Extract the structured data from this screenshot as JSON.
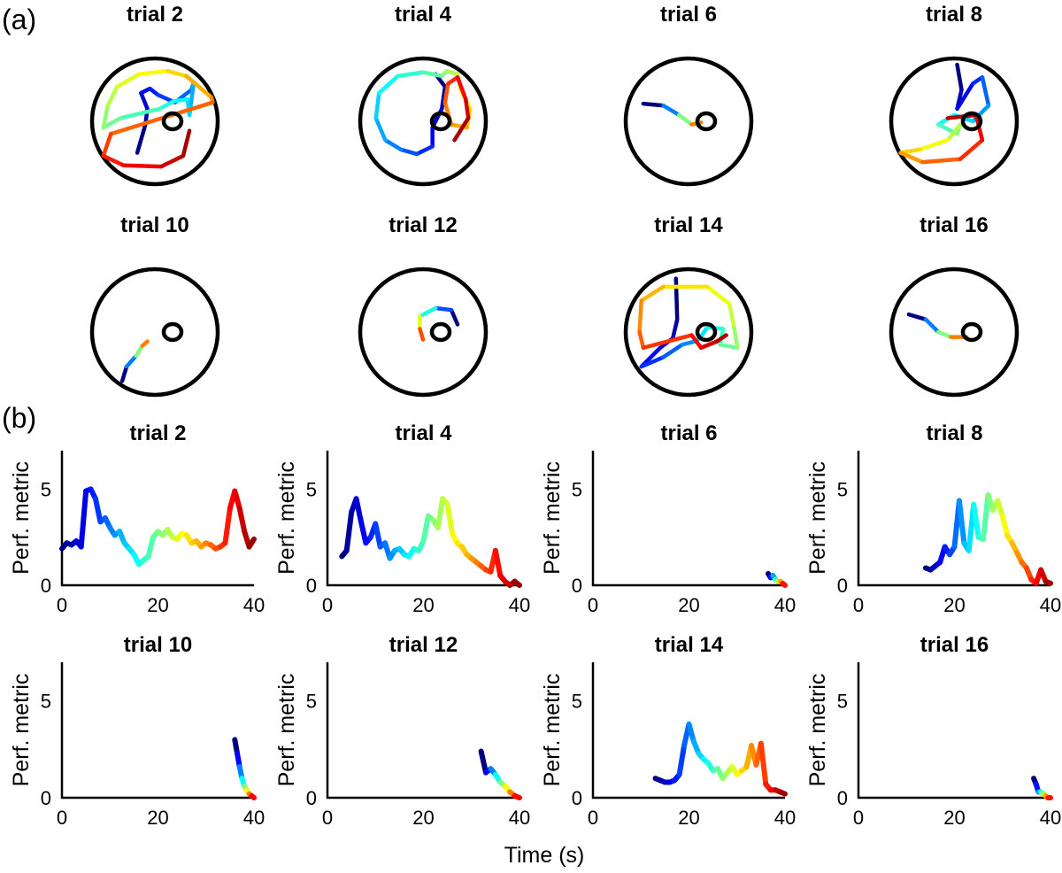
{
  "figure": {
    "panel_a_label": "(a)",
    "panel_b_label": "(b)",
    "shared_xlabel": "Time (s)"
  },
  "chart_data": [
    {
      "type": "trajectory-maps",
      "panel": "(a)",
      "colormap": "jet (blue = early, red = late)",
      "arena": "circular pool with small goal ring",
      "trials": [
        {
          "title": "trial 2",
          "path": [
            [
              -0.28,
              -0.5
            ],
            [
              -0.15,
              -0.05
            ],
            [
              -0.12,
              0.2
            ],
            [
              -0.22,
              0.45
            ],
            [
              -0.08,
              0.52
            ],
            [
              0.05,
              0.42
            ],
            [
              0.32,
              0.3
            ],
            [
              0.58,
              0.5
            ],
            [
              0.62,
              0.62
            ],
            [
              0.55,
              0.1
            ],
            [
              0.52,
              0.35
            ],
            [
              0.3,
              0.32
            ],
            [
              0.08,
              0.2
            ],
            [
              -0.55,
              0.05
            ],
            [
              -0.82,
              -0.1
            ],
            [
              -0.75,
              0.25
            ],
            [
              -0.6,
              0.55
            ],
            [
              -0.25,
              0.75
            ],
            [
              0.2,
              0.8
            ],
            [
              0.5,
              0.72
            ],
            [
              0.9,
              0.38
            ],
            [
              0.92,
              0.3
            ],
            [
              -0.7,
              -0.2
            ],
            [
              -0.82,
              -0.55
            ],
            [
              -0.5,
              -0.7
            ],
            [
              0.1,
              -0.72
            ],
            [
              0.45,
              -0.55
            ],
            [
              0.55,
              -0.15
            ]
          ]
        },
        {
          "title": "trial 4",
          "path": [
            [
              0.2,
              0.75
            ],
            [
              0.35,
              0.55
            ],
            [
              0.3,
              0.2
            ],
            [
              0.15,
              -0.1
            ],
            [
              0.15,
              -0.4
            ],
            [
              -0.1,
              -0.52
            ],
            [
              -0.35,
              -0.45
            ],
            [
              -0.6,
              -0.3
            ],
            [
              -0.75,
              0.05
            ],
            [
              -0.7,
              0.45
            ],
            [
              -0.4,
              0.72
            ],
            [
              0.0,
              0.78
            ],
            [
              0.3,
              0.72
            ],
            [
              0.38,
              0.8
            ],
            [
              0.55,
              0.75
            ],
            [
              0.6,
              0.5
            ],
            [
              0.75,
              0.2
            ],
            [
              0.7,
              -0.1
            ],
            [
              0.45,
              -0.05
            ],
            [
              0.35,
              0.3
            ],
            [
              0.4,
              0.6
            ],
            [
              0.55,
              0.7
            ],
            [
              0.68,
              0.35
            ],
            [
              0.72,
              0.05
            ],
            [
              0.5,
              -0.3
            ]
          ]
        },
        {
          "title": "trial 6",
          "path": [
            [
              -0.72,
              0.28
            ],
            [
              -0.4,
              0.25
            ],
            [
              -0.15,
              0.1
            ],
            [
              0.05,
              -0.05
            ],
            [
              0.2,
              -0.02
            ]
          ]
        },
        {
          "title": "trial 8",
          "path": [
            [
              0.05,
              0.9
            ],
            [
              0.12,
              0.5
            ],
            [
              0.05,
              0.2
            ],
            [
              0.3,
              0.6
            ],
            [
              0.45,
              0.7
            ],
            [
              0.55,
              0.25
            ],
            [
              0.3,
              0.0
            ],
            [
              0.0,
              0.1
            ],
            [
              -0.25,
              -0.05
            ],
            [
              0.05,
              -0.2
            ],
            [
              0.1,
              -0.05
            ],
            [
              -0.1,
              -0.3
            ],
            [
              -0.55,
              -0.45
            ],
            [
              -0.85,
              -0.5
            ],
            [
              -0.5,
              -0.65
            ],
            [
              0.1,
              -0.6
            ],
            [
              0.45,
              -0.3
            ],
            [
              0.35,
              0.1
            ],
            [
              -0.1,
              0.05
            ]
          ]
        },
        {
          "title": "trial 10",
          "path": [
            [
              -0.52,
              -0.78
            ],
            [
              -0.45,
              -0.55
            ],
            [
              -0.3,
              -0.38
            ],
            [
              -0.2,
              -0.22
            ],
            [
              -0.12,
              -0.15
            ]
          ]
        },
        {
          "title": "trial 12",
          "path": [
            [
              0.55,
              0.12
            ],
            [
              0.45,
              0.35
            ],
            [
              0.2,
              0.38
            ],
            [
              -0.05,
              0.25
            ],
            [
              -0.05,
              0.05
            ],
            [
              0.0,
              -0.12
            ]
          ]
        },
        {
          "title": "trial 14",
          "path": [
            [
              -0.2,
              0.85
            ],
            [
              -0.18,
              0.2
            ],
            [
              -0.25,
              -0.1
            ],
            [
              -0.45,
              -0.25
            ],
            [
              -0.75,
              -0.55
            ],
            [
              -0.4,
              -0.4
            ],
            [
              -0.1,
              -0.2
            ],
            [
              0.1,
              -0.15
            ],
            [
              0.18,
              -0.1
            ],
            [
              0.3,
              0.08
            ],
            [
              0.55,
              0.05
            ],
            [
              0.5,
              -0.2
            ],
            [
              0.78,
              -0.25
            ],
            [
              0.72,
              0.1
            ],
            [
              0.65,
              0.45
            ],
            [
              0.3,
              0.72
            ],
            [
              -0.4,
              0.72
            ],
            [
              -0.75,
              0.5
            ],
            [
              -0.78,
              0.0
            ],
            [
              -0.72,
              -0.25
            ],
            [
              0.05,
              -0.05
            ],
            [
              0.2,
              -0.25
            ],
            [
              0.45,
              -0.15
            ],
            [
              0.6,
              -0.05
            ]
          ]
        },
        {
          "title": "trial 16",
          "path": [
            [
              -0.72,
              0.28
            ],
            [
              -0.45,
              0.2
            ],
            [
              -0.25,
              0.0
            ],
            [
              -0.05,
              -0.08
            ],
            [
              0.2,
              -0.08
            ]
          ]
        }
      ]
    },
    {
      "type": "line",
      "panel": "(b)",
      "colormap": "jet (blue = early, red = late)",
      "xlabel": "Time (s)",
      "ylabel": "Perf. metric",
      "xlim": [
        0,
        40
      ],
      "ylim": [
        0,
        7
      ],
      "xticks": [
        0,
        20,
        40
      ],
      "yticks": [
        0,
        5
      ],
      "grid": false,
      "series": [
        {
          "title": "trial 2",
          "x": [
            0,
            1,
            2,
            3,
            4,
            5,
            6,
            7,
            8,
            9,
            10,
            11,
            12,
            13,
            14,
            15,
            16,
            17,
            18,
            19,
            20,
            21,
            22,
            23,
            24,
            25,
            26,
            27,
            28,
            29,
            30,
            31,
            32,
            33,
            34,
            35,
            36,
            37,
            38,
            39,
            40
          ],
          "y": [
            1.9,
            2.2,
            2.1,
            2.3,
            2.0,
            4.9,
            5.0,
            4.5,
            3.3,
            3.5,
            3.0,
            2.6,
            2.8,
            2.2,
            1.9,
            1.6,
            1.1,
            1.3,
            1.5,
            2.5,
            2.8,
            2.6,
            2.9,
            2.5,
            2.4,
            2.7,
            2.6,
            2.2,
            2.3,
            2.0,
            2.2,
            2.1,
            1.9,
            2.0,
            2.2,
            4.0,
            4.9,
            4.0,
            2.8,
            2.0,
            2.4
          ]
        },
        {
          "title": "trial 4",
          "x": [
            3,
            4,
            5,
            6,
            7,
            8,
            9,
            10,
            11,
            12,
            13,
            14,
            15,
            16,
            17,
            18,
            19,
            20,
            21,
            22,
            23,
            24,
            25,
            26,
            27,
            28,
            29,
            30,
            31,
            32,
            33,
            34,
            35,
            36,
            37,
            38,
            39,
            40
          ],
          "y": [
            1.5,
            1.8,
            3.8,
            4.5,
            3.3,
            2.2,
            2.5,
            3.2,
            2.0,
            2.2,
            1.4,
            1.8,
            1.9,
            1.6,
            1.5,
            1.9,
            1.8,
            2.3,
            3.6,
            3.4,
            3.0,
            4.5,
            4.2,
            2.7,
            2.2,
            2.0,
            1.6,
            1.4,
            1.2,
            1.0,
            0.8,
            0.7,
            1.8,
            0.5,
            0.2,
            0.0,
            0.2,
            0.0
          ]
        },
        {
          "title": "trial 6",
          "x": [
            36.5,
            37,
            37.5,
            38,
            38.5,
            39,
            39.5,
            40
          ],
          "y": [
            0.6,
            0.4,
            0.5,
            0.3,
            0.2,
            0.2,
            0.1,
            0.0
          ]
        },
        {
          "title": "trial 8",
          "x": [
            14,
            15,
            16,
            17,
            18,
            19,
            20,
            21,
            22,
            23,
            24,
            25,
            26,
            27,
            28,
            29,
            30,
            31,
            32,
            33,
            34,
            35,
            36,
            37,
            38,
            39,
            40
          ],
          "y": [
            0.9,
            0.8,
            1.0,
            1.2,
            2.0,
            1.6,
            2.0,
            4.4,
            2.2,
            1.8,
            4.2,
            2.5,
            2.4,
            4.7,
            3.9,
            4.4,
            3.6,
            2.6,
            2.2,
            1.7,
            1.2,
            0.9,
            0.3,
            0.1,
            0.8,
            0.2,
            0.1
          ]
        },
        {
          "title": "trial 10",
          "x": [
            36,
            36.5,
            37,
            37.5,
            38,
            38.5,
            39,
            39.5,
            40
          ],
          "y": [
            3.0,
            2.3,
            1.6,
            1.0,
            0.6,
            0.4,
            0.2,
            0.1,
            0.0
          ]
        },
        {
          "title": "trial 12",
          "x": [
            32,
            33,
            34,
            35,
            36,
            37,
            38,
            39,
            40
          ],
          "y": [
            2.4,
            1.3,
            1.5,
            1.2,
            0.8,
            0.6,
            0.3,
            0.1,
            0.0
          ]
        },
        {
          "title": "trial 14",
          "x": [
            13,
            14,
            15,
            16,
            17,
            18,
            19,
            20,
            21,
            22,
            23,
            24,
            25,
            26,
            27,
            28,
            29,
            30,
            31,
            32,
            33,
            34,
            35,
            36,
            37,
            38,
            39,
            40
          ],
          "y": [
            1.0,
            0.9,
            0.8,
            0.8,
            0.9,
            1.2,
            2.7,
            3.8,
            2.9,
            2.3,
            2.0,
            1.8,
            1.4,
            1.5,
            1.0,
            1.3,
            1.6,
            1.2,
            1.4,
            1.6,
            2.7,
            1.7,
            2.8,
            0.7,
            0.4,
            0.4,
            0.3,
            0.2
          ]
        },
        {
          "title": "trial 16",
          "x": [
            36.5,
            37,
            37.5,
            38,
            38.5,
            39,
            39.5,
            40
          ],
          "y": [
            1.0,
            0.7,
            0.3,
            0.3,
            0.2,
            0.1,
            0.0,
            0.0
          ]
        }
      ]
    }
  ]
}
